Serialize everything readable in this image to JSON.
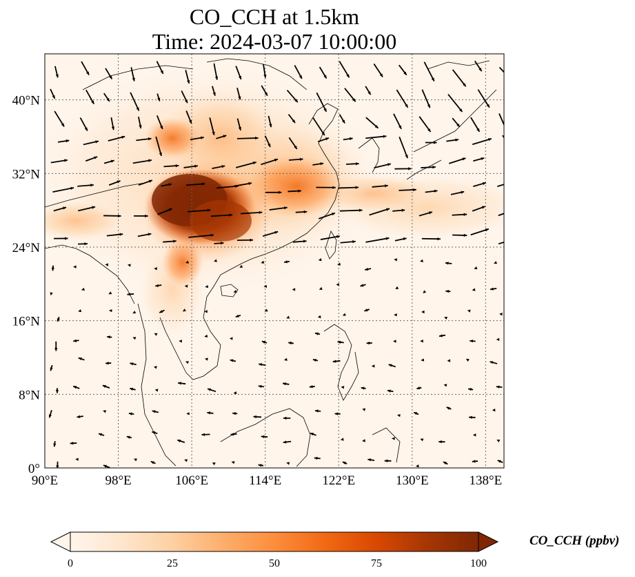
{
  "title": {
    "line1": "CO_CCH at 1.5km",
    "line2": "Time: 2024-03-07 10:00:00"
  },
  "map": {
    "extent_lon": [
      90,
      140
    ],
    "extent_lat": [
      0,
      45
    ],
    "x_ticks": [
      {
        "value": 90,
        "label": "90°E"
      },
      {
        "value": 98,
        "label": "98°E"
      },
      {
        "value": 106,
        "label": "106°E"
      },
      {
        "value": 114,
        "label": "114°E"
      },
      {
        "value": 122,
        "label": "122°E"
      },
      {
        "value": 130,
        "label": "130°E"
      },
      {
        "value": 138,
        "label": "138°E"
      }
    ],
    "y_ticks": [
      {
        "value": 0,
        "label": "0°"
      },
      {
        "value": 8,
        "label": "8°N"
      },
      {
        "value": 16,
        "label": "16°N"
      },
      {
        "value": 24,
        "label": "24°N"
      },
      {
        "value": 32,
        "label": "32°N"
      },
      {
        "value": 40,
        "label": "40°N"
      }
    ],
    "gridlines": true,
    "field": "CO_CCH concentration with wind vectors"
  },
  "colorbar": {
    "label": "CO_CCH (ppbv)",
    "range": [
      0,
      100
    ],
    "extend": "both",
    "colors": [
      "#fff5eb",
      "#fee6ce",
      "#fdd0a2",
      "#fdae6b",
      "#fd8d3c",
      "#f16913",
      "#d94801",
      "#a63603",
      "#7f2704"
    ],
    "ticks": [
      {
        "value": 0,
        "label": "0"
      },
      {
        "value": 25,
        "label": "25"
      },
      {
        "value": 50,
        "label": "50"
      },
      {
        "value": 75,
        "label": "75"
      },
      {
        "value": 100,
        "label": "100"
      }
    ]
  }
}
